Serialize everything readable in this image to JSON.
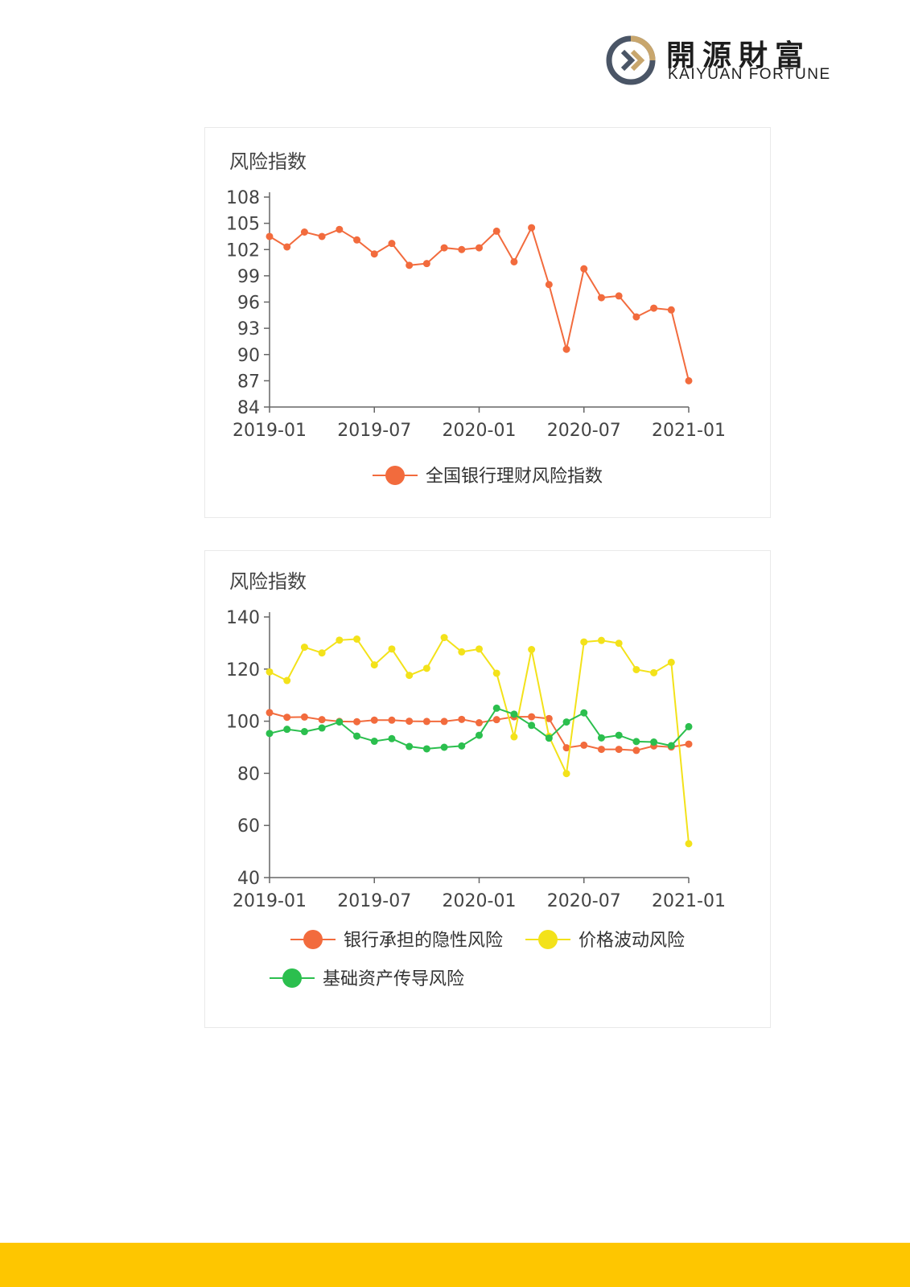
{
  "brand": {
    "name_cn": "開源財富",
    "name_en": "KAIYUAN FORTUNE",
    "colors": {
      "gold": "#c8a66d",
      "gray": "#4a5566"
    }
  },
  "chart_data": [
    {
      "type": "line",
      "title": "风险指数",
      "xlabel": "",
      "ylabel": "",
      "x": [
        "2019-01",
        "2019-02",
        "2019-03",
        "2019-04",
        "2019-05",
        "2019-06",
        "2019-07",
        "2019-08",
        "2019-09",
        "2019-10",
        "2019-11",
        "2019-12",
        "2020-01",
        "2020-02",
        "2020-03",
        "2020-04",
        "2020-05",
        "2020-06",
        "2020-07",
        "2020-08",
        "2020-09",
        "2020-10",
        "2020-11",
        "2020-12",
        "2021-01"
      ],
      "xticks": [
        "2019-01",
        "2019-07",
        "2020-01",
        "2020-07",
        "2021-01"
      ],
      "ylim": [
        84,
        108
      ],
      "yticks": [
        84,
        87,
        90,
        93,
        96,
        99,
        102,
        105,
        108
      ],
      "grid": false,
      "legend_position": "bottom",
      "series": [
        {
          "name": "全国银行理财风险指数",
          "color": "#f26b3d",
          "values": [
            103.5,
            102.3,
            104.0,
            103.5,
            104.3,
            103.1,
            101.5,
            102.7,
            100.2,
            100.4,
            102.2,
            102.0,
            102.2,
            104.1,
            100.6,
            104.5,
            98.0,
            90.6,
            99.8,
            96.5,
            96.7,
            94.3,
            95.3,
            95.1,
            87.0
          ]
        }
      ]
    },
    {
      "type": "line",
      "title": "风险指数",
      "xlabel": "",
      "ylabel": "",
      "x": [
        "2019-01",
        "2019-02",
        "2019-03",
        "2019-04",
        "2019-05",
        "2019-06",
        "2019-07",
        "2019-08",
        "2019-09",
        "2019-10",
        "2019-11",
        "2019-12",
        "2020-01",
        "2020-02",
        "2020-03",
        "2020-04",
        "2020-05",
        "2020-06",
        "2020-07",
        "2020-08",
        "2020-09",
        "2020-10",
        "2020-11",
        "2020-12",
        "2021-01"
      ],
      "xticks": [
        "2019-01",
        "2019-07",
        "2020-01",
        "2020-07",
        "2021-01"
      ],
      "ylim": [
        40,
        140
      ],
      "yticks": [
        40,
        60,
        80,
        100,
        120,
        140
      ],
      "grid": false,
      "legend_position": "bottom",
      "series": [
        {
          "name": "银行承担的隐性风险",
          "color": "#f26b3d",
          "values": [
            103.3,
            101.5,
            101.6,
            100.6,
            99.9,
            99.8,
            100.4,
            100.4,
            100.0,
            99.9,
            99.9,
            100.7,
            99.4,
            100.6,
            101.7,
            101.7,
            101.0,
            89.8,
            90.8,
            89.2,
            89.2,
            88.8,
            90.5,
            90.1,
            91.2
          ]
        },
        {
          "name": "价格波动风险",
          "color": "#f3e21a",
          "values": [
            118.9,
            115.6,
            128.4,
            126.2,
            131.1,
            131.5,
            121.6,
            127.7,
            117.6,
            120.3,
            132.1,
            126.6,
            127.7,
            118.4,
            94.0,
            127.5,
            94.2,
            79.9,
            130.4,
            131.0,
            129.9,
            119.8,
            118.6,
            122.6,
            53.0
          ]
        },
        {
          "name": "基础资产传导风险",
          "color": "#2bbf4e",
          "values": [
            95.3,
            96.9,
            96.0,
            97.4,
            99.7,
            94.3,
            92.3,
            93.3,
            90.3,
            89.4,
            90.0,
            90.5,
            94.6,
            105.0,
            102.7,
            98.4,
            93.5,
            99.7,
            103.2,
            93.6,
            94.6,
            92.2,
            92.0,
            90.6,
            97.9
          ]
        }
      ]
    }
  ]
}
